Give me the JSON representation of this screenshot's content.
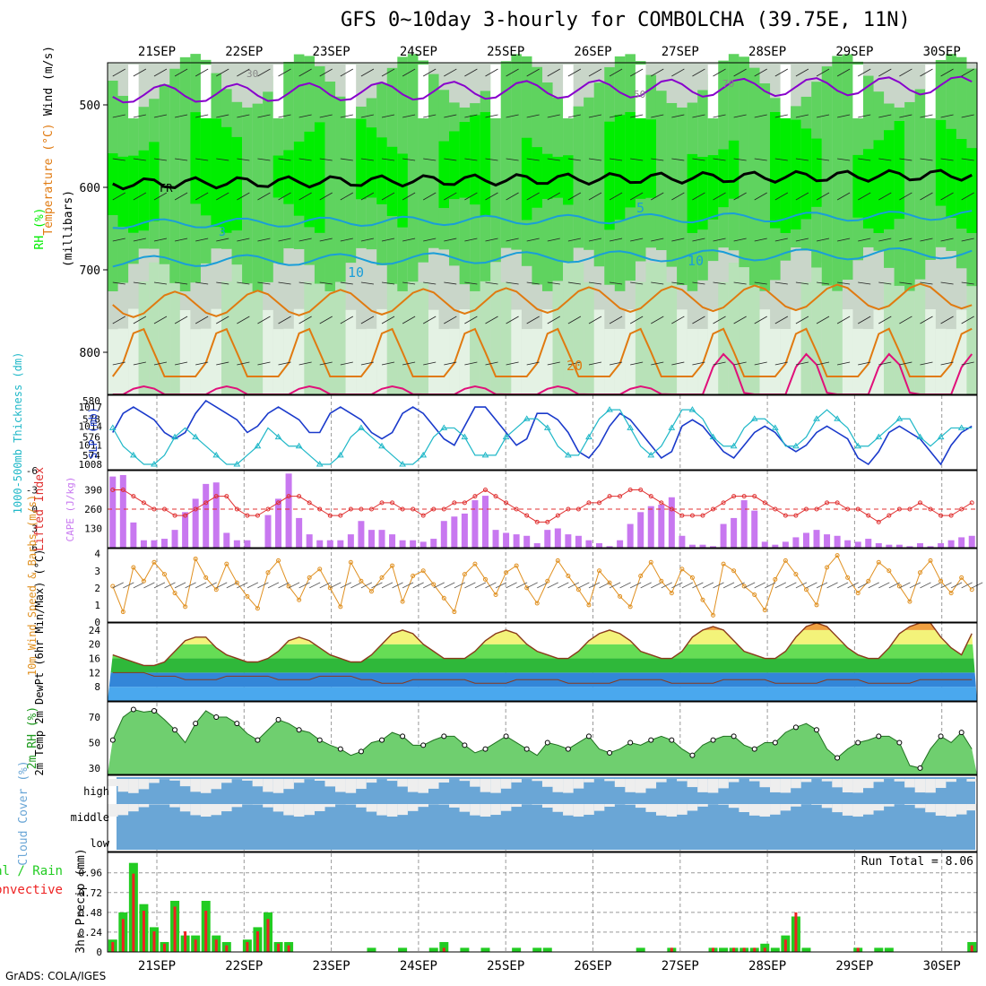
{
  "title": "GFS 0~10day 3-hourly for COMBOLCHA (39.75E, 11N)",
  "footer": "GrADS: COLA/IGES",
  "colors": {
    "rh_green": "#00ee00",
    "rh_mid": "#5fd35f",
    "rh_light": "#b8e2b8",
    "rh_grey": "#c9d6c9",
    "temp_purple": "#8800cc",
    "temp_cyan": "#1a9ed8",
    "temp_orange": "#e07a10",
    "temp_magenta": "#e0107a",
    "slp_blue": "#1a3acb",
    "thk_cyan": "#20b8c8",
    "cape_purple": "#c878f0",
    "li_red": "#e03030",
    "wind_orange": "#e09020",
    "cloud_blue": "#6aa6d6",
    "precip_green": "#22cc22",
    "precip_red": "#ee2222"
  },
  "dates": [
    "21SEP",
    "22SEP",
    "23SEP",
    "24SEP",
    "25SEP",
    "26SEP",
    "27SEP",
    "28SEP",
    "29SEP",
    "30SEP"
  ],
  "panel_labels": {
    "upper_rh": "RH (%)",
    "upper_temp": "Temperature (°C)",
    "upper_wind": "Wind (m/s)",
    "upper_units": "(millibars)",
    "thick": "1000-500mb Thickness (dm)",
    "slp": "SLP (mb)",
    "li": "Lifted Index",
    "cape": "CAPE (J/kg)",
    "wind10": "10m Wind Speed & Barbs (m/s)",
    "temp2m": "2m Temp 2m DewPt (6hr Min/Max) (°C)",
    "rh2m": "2m RH (%)",
    "cloud": "Cloud Cover (%)",
    "precip_total": "Total / Rain",
    "precip_conv": "Convective",
    "precip_unit": "3hr Precip (mm)"
  },
  "run_total": "Run Total = 8.06",
  "upper_labels": [
    "FR",
    "5",
    "10",
    "20",
    "3",
    "30",
    "50",
    "70"
  ],
  "chart_data": [
    {
      "type": "heatmap",
      "title": "GFS 0~10day 3-hourly for COMBOLCHA (39.75E, 11N)",
      "ylabel": "millibars",
      "y_ticks": [
        500,
        600,
        700,
        800
      ],
      "ylim": [
        850,
        450
      ],
      "x": [
        "21SEP",
        "22SEP",
        "23SEP",
        "24SEP",
        "25SEP",
        "26SEP",
        "27SEP",
        "28SEP",
        "29SEP",
        "30SEP"
      ],
      "contour_labels": [
        "FR",
        "5",
        "10",
        "20"
      ]
    },
    {
      "type": "line",
      "series": [
        {
          "name": "SLP (mb)",
          "values": [
            1013,
            1016,
            1017,
            1016,
            1015,
            1013,
            1012,
            1013,
            1016,
            1018,
            1017,
            1016,
            1015,
            1013,
            1014,
            1016,
            1017,
            1016,
            1015,
            1013,
            1013,
            1016,
            1017,
            1016,
            1015,
            1013,
            1012,
            1013,
            1016,
            1017,
            1016,
            1014,
            1012,
            1011,
            1014,
            1017,
            1017,
            1015,
            1013,
            1011,
            1012,
            1016,
            1016,
            1015,
            1013,
            1010,
            1009,
            1011,
            1014,
            1016,
            1015,
            1013,
            1011,
            1009,
            1010,
            1014,
            1015,
            1014,
            1012,
            1010,
            1009,
            1011,
            1013,
            1014,
            1013,
            1011,
            1010,
            1011,
            1013,
            1014,
            1013,
            1012,
            1009,
            1008,
            1010,
            1013,
            1014,
            1013,
            1012,
            1010,
            1008,
            1011,
            1013,
            1014
          ]
        },
        {
          "name": "1000-500mb Thickness (dm)",
          "values": [
            577,
            575,
            574,
            573,
            573,
            574,
            576,
            577,
            576,
            575,
            574,
            573,
            573,
            574,
            575,
            577,
            576,
            575,
            575,
            574,
            573,
            573,
            574,
            576,
            577,
            576,
            575,
            574,
            573,
            573,
            574,
            576,
            577,
            577,
            576,
            574,
            574,
            574,
            576,
            577,
            578,
            578,
            577,
            575,
            574,
            574,
            576,
            578,
            579,
            579,
            577,
            575,
            574,
            575,
            577,
            579,
            579,
            578,
            576,
            575,
            575,
            577,
            578,
            578,
            577,
            575,
            575,
            576,
            578,
            579,
            578,
            577,
            575,
            575,
            576,
            577,
            578,
            578,
            576,
            575,
            576,
            577,
            577,
            577
          ]
        }
      ],
      "y_ticks_left": [
        574,
        576,
        578,
        580
      ],
      "y_ticks_right": [
        1008,
        1011,
        1014,
        1017
      ]
    },
    {
      "type": "bar",
      "series": [
        {
          "name": "CAPE (J/kg)",
          "values": [
            480,
            490,
            170,
            50,
            50,
            60,
            120,
            240,
            330,
            430,
            440,
            100,
            50,
            50,
            0,
            220,
            330,
            500,
            200,
            90,
            50,
            50,
            50,
            90,
            180,
            120,
            120,
            90,
            50,
            50,
            40,
            60,
            180,
            210,
            230,
            320,
            350,
            120,
            100,
            90,
            80,
            30,
            120,
            130,
            90,
            80,
            50,
            30,
            10,
            50,
            160,
            240,
            280,
            290,
            340,
            80,
            20,
            20,
            10,
            160,
            200,
            320,
            250,
            40,
            20,
            40,
            70,
            100,
            120,
            90,
            80,
            50,
            40,
            60,
            30,
            20,
            20,
            10,
            30,
            10,
            30,
            50,
            70,
            80
          ]
        },
        {
          "name": "Lifted Index",
          "values": [
            -3,
            -3,
            -2,
            -1,
            0,
            0,
            1,
            1,
            0,
            -1,
            -2,
            -2,
            0,
            1,
            1,
            0,
            -1,
            -2,
            -2,
            -1,
            0,
            1,
            1,
            0,
            0,
            0,
            -1,
            -1,
            0,
            0,
            1,
            0,
            0,
            -1,
            -1,
            -2,
            -3,
            -2,
            -1,
            0,
            1,
            2,
            2,
            1,
            0,
            0,
            -1,
            -1,
            -2,
            -2,
            -3,
            -3,
            -2,
            -1,
            0,
            1,
            1,
            1,
            0,
            -1,
            -2,
            -2,
            -2,
            -1,
            0,
            1,
            1,
            0,
            0,
            -1,
            -1,
            0,
            0,
            1,
            2,
            1,
            0,
            0,
            -1,
            0,
            1,
            1,
            0,
            -1
          ]
        }
      ],
      "y_ticks_left": [
        130,
        260,
        390
      ],
      "y_ticks_right": [
        -6,
        -3,
        0,
        3,
        6
      ]
    },
    {
      "type": "line",
      "series": [
        {
          "name": "10m Wind Speed (m/s)",
          "values": [
            2.1,
            0.6,
            3.2,
            2.4,
            3.5,
            2.8,
            1.7,
            0.9,
            3.7,
            2.6,
            1.9,
            3.4,
            2.3,
            1.5,
            0.8,
            2.9,
            3.6,
            2.1,
            1.3,
            2.6,
            3.1,
            2.0,
            0.9,
            3.5,
            2.4,
            1.8,
            2.6,
            3.3,
            1.2,
            2.7,
            3.0,
            2.2,
            1.4,
            0.6,
            2.8,
            3.4,
            2.5,
            1.6,
            2.9,
            3.3,
            2.0,
            1.1,
            2.4,
            3.6,
            2.7,
            1.9,
            1.0,
            3.0,
            2.3,
            1.5,
            0.9,
            2.7,
            3.5,
            2.4,
            1.7,
            3.1,
            2.6,
            1.3,
            0.4,
            3.4,
            3.0,
            2.1,
            1.6,
            0.7,
            2.5,
            3.6,
            2.8,
            1.9,
            1.0,
            3.2,
            3.9,
            2.6,
            1.7,
            2.4,
            3.5,
            3.0,
            2.1,
            1.2,
            2.9,
            3.6,
            2.4,
            1.7,
            2.6,
            1.9
          ]
        }
      ],
      "y_ticks": [
        0,
        1,
        2,
        3,
        4
      ]
    },
    {
      "type": "area",
      "series": [
        {
          "name": "2m Temp (°C)",
          "values": [
            17,
            16,
            15,
            14,
            14,
            15,
            18,
            21,
            22,
            22,
            19,
            17,
            16,
            15,
            15,
            16,
            18,
            21,
            22,
            21,
            19,
            17,
            16,
            15,
            15,
            17,
            20,
            23,
            24,
            23,
            20,
            18,
            16,
            16,
            16,
            18,
            21,
            23,
            24,
            23,
            20,
            18,
            17,
            16,
            16,
            18,
            21,
            23,
            24,
            23,
            21,
            18,
            17,
            16,
            16,
            18,
            22,
            24,
            25,
            24,
            21,
            18,
            17,
            16,
            16,
            18,
            22,
            25,
            26,
            25,
            22,
            19,
            17,
            16,
            16,
            19,
            23,
            25,
            26,
            26,
            22,
            19,
            17,
            23
          ]
        },
        {
          "name": "2m DewPt (°C)",
          "values": [
            12,
            12,
            12,
            12,
            11,
            11,
            11,
            10,
            10,
            10,
            10,
            11,
            11,
            11,
            11,
            11,
            10,
            10,
            10,
            10,
            11,
            11,
            11,
            11,
            10,
            10,
            9,
            9,
            9,
            10,
            10,
            10,
            10,
            10,
            10,
            9,
            9,
            9,
            9,
            10,
            10,
            10,
            10,
            10,
            9,
            9,
            9,
            9,
            9,
            10,
            10,
            10,
            10,
            10,
            9,
            9,
            9,
            9,
            9,
            10,
            10,
            10,
            10,
            10,
            9,
            9,
            9,
            9,
            9,
            10,
            10,
            10,
            10,
            9,
            9,
            9,
            9,
            9,
            10,
            10,
            10,
            10,
            10,
            10
          ]
        }
      ],
      "y_ticks": [
        8,
        12,
        16,
        20,
        24
      ]
    },
    {
      "type": "area",
      "series": [
        {
          "name": "2m RH (%)",
          "values": [
            52,
            70,
            76,
            74,
            75,
            68,
            60,
            50,
            65,
            75,
            70,
            70,
            65,
            57,
            52,
            60,
            68,
            65,
            60,
            58,
            52,
            48,
            45,
            40,
            43,
            50,
            52,
            58,
            55,
            48,
            48,
            52,
            55,
            55,
            48,
            42,
            45,
            50,
            55,
            50,
            45,
            40,
            50,
            48,
            45,
            50,
            55,
            45,
            42,
            45,
            50,
            48,
            52,
            55,
            52,
            45,
            40,
            48,
            52,
            55,
            55,
            48,
            45,
            50,
            50,
            58,
            62,
            65,
            60,
            45,
            38,
            45,
            50,
            52,
            55,
            55,
            50,
            32,
            30,
            45,
            55,
            50,
            58,
            45
          ]
        }
      ],
      "y_ticks": [
        30,
        50,
        70
      ]
    },
    {
      "type": "heatmap",
      "categories": [
        "high",
        "middle",
        "low"
      ],
      "title": "Cloud Cover (%)"
    },
    {
      "type": "bar",
      "series": [
        {
          "name": "Total / Rain",
          "values": [
            0.15,
            0.48,
            1.08,
            0.58,
            0.3,
            0.12,
            0.62,
            0.2,
            0.2,
            0.62,
            0.2,
            0.12,
            0,
            0.15,
            0.3,
            0.48,
            0.12,
            0.12,
            0,
            0,
            0,
            0,
            0,
            0,
            0,
            0.05,
            0,
            0,
            0.05,
            0,
            0,
            0.05,
            0.12,
            0,
            0.05,
            0,
            0.05,
            0,
            0,
            0.05,
            0,
            0.05,
            0.05,
            0,
            0,
            0,
            0,
            0,
            0,
            0,
            0,
            0.05,
            0,
            0,
            0.05,
            0,
            0,
            0,
            0.05,
            0.05,
            0.05,
            0.05,
            0.05,
            0.1,
            0.05,
            0.2,
            0.43,
            0.05,
            0,
            0,
            0,
            0,
            0.05,
            0,
            0.05,
            0.05,
            0,
            0,
            0,
            0,
            0,
            0,
            0,
            0.12
          ]
        },
        {
          "name": "Convective",
          "values": [
            0.12,
            0.4,
            0.95,
            0.5,
            0.25,
            0.1,
            0.55,
            0.25,
            0.15,
            0.5,
            0.15,
            0.08,
            0,
            0.12,
            0.25,
            0.4,
            0.1,
            0.08,
            0,
            0,
            0,
            0,
            0,
            0,
            0,
            0,
            0,
            0,
            0,
            0,
            0,
            0,
            0.05,
            0,
            0,
            0,
            0,
            0,
            0,
            0,
            0,
            0,
            0,
            0,
            0,
            0,
            0,
            0,
            0,
            0,
            0,
            0,
            0,
            0,
            0.05,
            0,
            0,
            0,
            0.05,
            0,
            0.05,
            0.05,
            0.05,
            0.05,
            0,
            0.15,
            0.48,
            0,
            0,
            0,
            0,
            0,
            0.05,
            0,
            0,
            0,
            0,
            0,
            0,
            0,
            0,
            0,
            0,
            0.08
          ]
        }
      ],
      "y_ticks": [
        0,
        0.24,
        0.48,
        0.72,
        0.96
      ]
    }
  ]
}
